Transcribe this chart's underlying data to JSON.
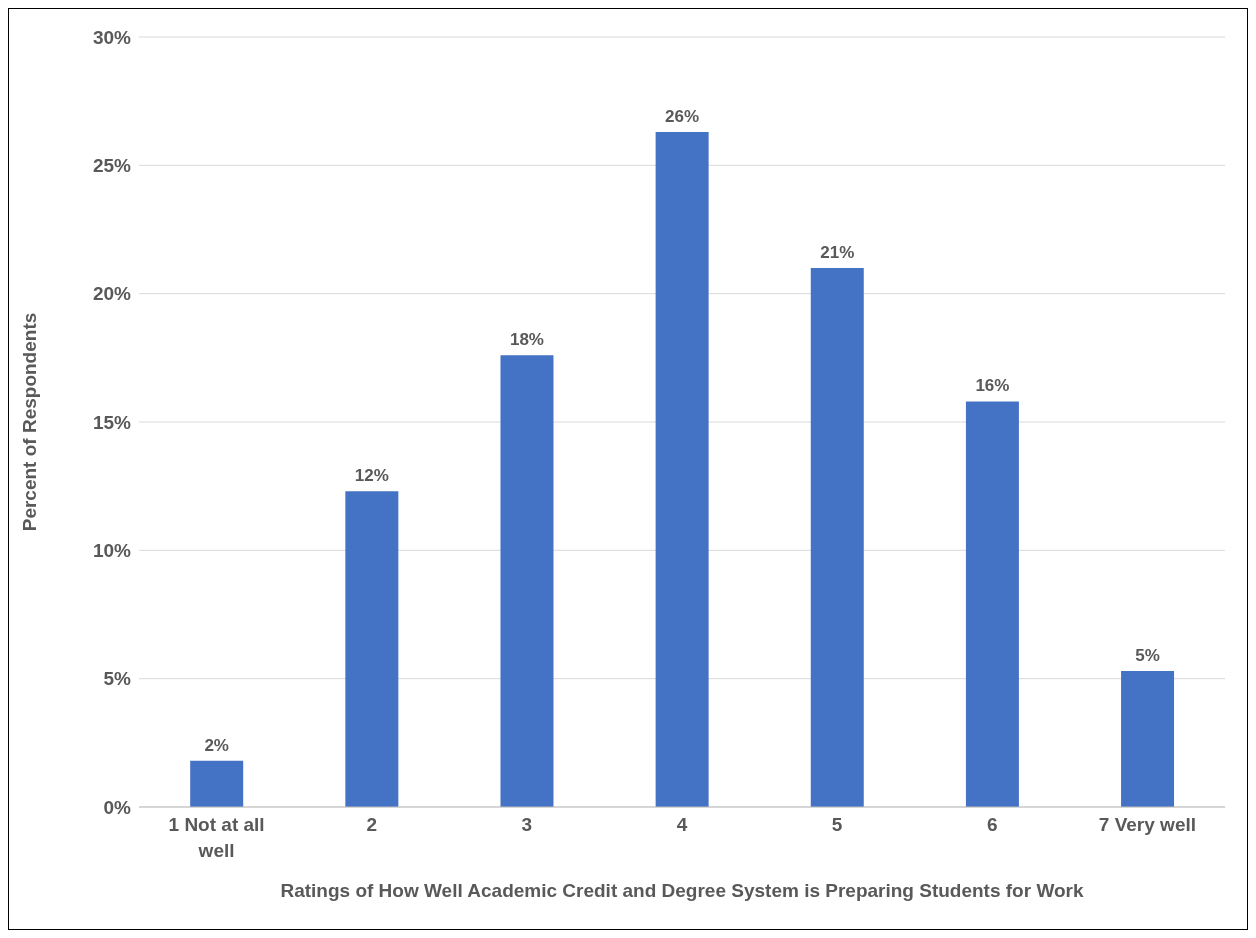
{
  "chart_data": {
    "type": "bar",
    "xlabel": "Ratings of How Well Academic Credit and Degree System is Preparing Students for Work",
    "ylabel": "Percent of Respondents",
    "categories": [
      "1 Not at all well",
      "2",
      "3",
      "4",
      "5",
      "6",
      "7 Very well"
    ],
    "values": [
      1.8,
      12.3,
      17.6,
      26.3,
      21.0,
      15.8,
      5.3
    ],
    "value_labels": [
      "2%",
      "12%",
      "18%",
      "26%",
      "21%",
      "16%",
      "5%"
    ],
    "color": "#4472c4",
    "ylim": [
      0,
      30
    ],
    "yticks": [
      {
        "value": 0,
        "label": "0%"
      },
      {
        "value": 5,
        "label": "5%"
      },
      {
        "value": 10,
        "label": "10%"
      },
      {
        "value": 15,
        "label": "15%"
      },
      {
        "value": 20,
        "label": "20%"
      },
      {
        "value": 25,
        "label": "25%"
      },
      {
        "value": 30,
        "label": "30%"
      }
    ],
    "grid": "y"
  }
}
